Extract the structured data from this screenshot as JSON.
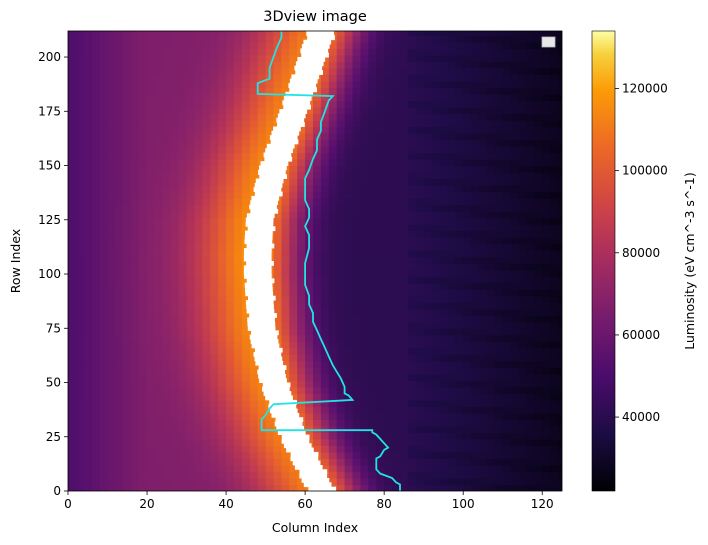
{
  "chart_data": {
    "type": "heatmap",
    "title": "3Dview image",
    "xlabel": "Column Index",
    "ylabel": "Row Index",
    "xlim": [
      0,
      125
    ],
    "ylim": [
      0,
      212
    ],
    "x_ticks": [
      0,
      20,
      40,
      60,
      80,
      100,
      120
    ],
    "y_ticks": [
      0,
      25,
      50,
      75,
      100,
      125,
      150,
      175,
      200
    ],
    "colormap": "inferno",
    "colorbar": {
      "label": "Luminosity (eV cm^-3 s^-1)",
      "range": [
        22000,
        134000
      ],
      "ticks": [
        40000,
        60000,
        80000,
        100000,
        120000
      ]
    },
    "legend": {
      "placement": "top-right",
      "entries": []
    },
    "ridge_centerline": [
      {
        "row": 0,
        "col": 64
      },
      {
        "row": 25,
        "col": 57
      },
      {
        "row": 50,
        "col": 52
      },
      {
        "row": 75,
        "col": 49
      },
      {
        "row": 100,
        "col": 48
      },
      {
        "row": 110,
        "col": 48
      },
      {
        "row": 125,
        "col": 48.5
      },
      {
        "row": 150,
        "col": 52
      },
      {
        "row": 175,
        "col": 57
      },
      {
        "row": 212,
        "col": 64
      }
    ],
    "white_band_halfwidth": 3.5,
    "boundary_line": {
      "color": "#22e3e3",
      "points": [
        {
          "x": 84,
          "y": 0
        },
        {
          "x": 84,
          "y": 3
        },
        {
          "x": 83,
          "y": 4
        },
        {
          "x": 82,
          "y": 6
        },
        {
          "x": 79,
          "y": 8
        },
        {
          "x": 78,
          "y": 10
        },
        {
          "x": 78,
          "y": 15
        },
        {
          "x": 79,
          "y": 16
        },
        {
          "x": 80,
          "y": 19
        },
        {
          "x": 81,
          "y": 20
        },
        {
          "x": 80,
          "y": 22
        },
        {
          "x": 79,
          "y": 24
        },
        {
          "x": 78,
          "y": 26
        },
        {
          "x": 77,
          "y": 27
        },
        {
          "x": 77,
          "y": 28
        },
        {
          "x": 49,
          "y": 28
        },
        {
          "x": 49,
          "y": 33
        },
        {
          "x": 50,
          "y": 35
        },
        {
          "x": 51,
          "y": 38
        },
        {
          "x": 52,
          "y": 40
        },
        {
          "x": 72,
          "y": 42
        },
        {
          "x": 71,
          "y": 44
        },
        {
          "x": 70,
          "y": 45
        },
        {
          "x": 70,
          "y": 48
        },
        {
          "x": 69,
          "y": 52
        },
        {
          "x": 68,
          "y": 55
        },
        {
          "x": 67,
          "y": 58
        },
        {
          "x": 66,
          "y": 62
        },
        {
          "x": 65,
          "y": 66
        },
        {
          "x": 64,
          "y": 70
        },
        {
          "x": 63,
          "y": 74
        },
        {
          "x": 62,
          "y": 78
        },
        {
          "x": 62,
          "y": 82
        },
        {
          "x": 61,
          "y": 86
        },
        {
          "x": 61,
          "y": 90
        },
        {
          "x": 60,
          "y": 95
        },
        {
          "x": 60,
          "y": 100
        },
        {
          "x": 60,
          "y": 105
        },
        {
          "x": 61,
          "y": 112
        },
        {
          "x": 61,
          "y": 118
        },
        {
          "x": 60,
          "y": 122
        },
        {
          "x": 61,
          "y": 126
        },
        {
          "x": 61,
          "y": 130
        },
        {
          "x": 60,
          "y": 134
        },
        {
          "x": 60,
          "y": 139
        },
        {
          "x": 60,
          "y": 144
        },
        {
          "x": 61,
          "y": 148
        },
        {
          "x": 62,
          "y": 153
        },
        {
          "x": 63,
          "y": 157
        },
        {
          "x": 63,
          "y": 162
        },
        {
          "x": 64,
          "y": 166
        },
        {
          "x": 64,
          "y": 170
        },
        {
          "x": 65,
          "y": 175
        },
        {
          "x": 66,
          "y": 180
        },
        {
          "x": 67,
          "y": 182
        },
        {
          "x": 48,
          "y": 183
        },
        {
          "x": 48,
          "y": 188
        },
        {
          "x": 51,
          "y": 190
        },
        {
          "x": 51,
          "y": 195
        },
        {
          "x": 52,
          "y": 200
        },
        {
          "x": 53,
          "y": 205
        },
        {
          "x": 54,
          "y": 209
        },
        {
          "x": 54,
          "y": 212
        }
      ]
    }
  }
}
